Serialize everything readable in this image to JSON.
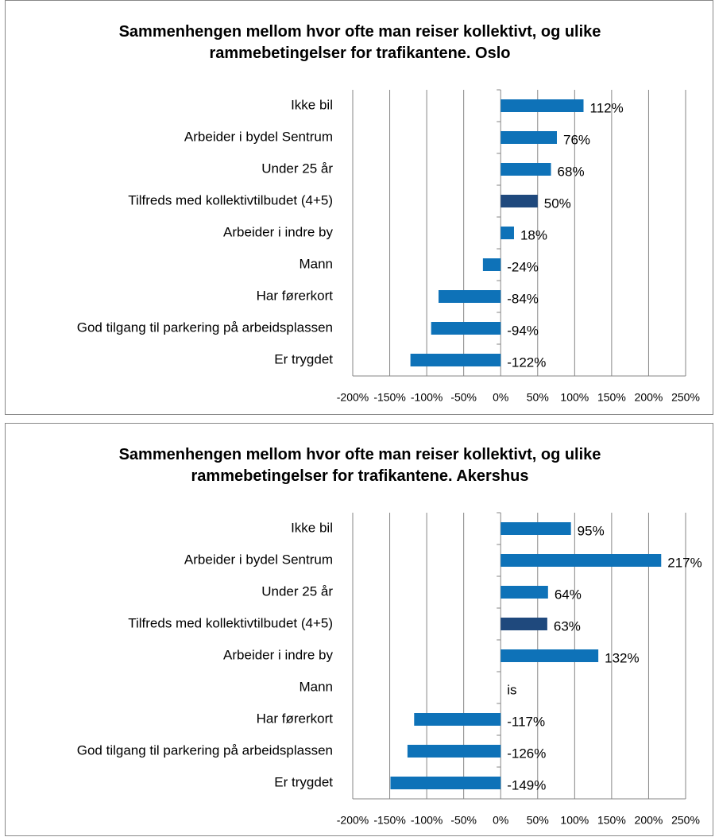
{
  "chart_data": [
    {
      "type": "bar",
      "orientation": "horizontal",
      "title": "Sammenhengen mellom hvor ofte man reiser kollektivt, og ulike rammebetingelser for trafikantene. Oslo",
      "categories": [
        "Ikke bil",
        "Arbeider i bydel Sentrum",
        "Under 25 år",
        "Tilfreds med kollektivtilbudet (4+5)",
        "Arbeider i indre by",
        "Mann",
        "Har førerkort",
        "God tilgang til parkering på arbeidsplassen",
        "Er trygdet"
      ],
      "values": [
        112,
        76,
        68,
        50,
        18,
        -24,
        -84,
        -94,
        -122
      ],
      "value_labels": [
        "112%",
        "76%",
        "68%",
        "50%",
        "18%",
        "-24%",
        "-84%",
        "-94%",
        "-122%"
      ],
      "colors": [
        "#0e72b8",
        "#0e72b8",
        "#0e72b8",
        "#1f497d",
        "#0e72b8",
        "#0e72b8",
        "#0e72b8",
        "#0e72b8",
        "#0e72b8"
      ],
      "xlim": [
        -200,
        250
      ],
      "xticks": [
        {
          "value": -200,
          "label": "-200%"
        },
        {
          "value": -150,
          "label": "-150%"
        },
        {
          "value": -100,
          "label": "-100%"
        },
        {
          "value": -50,
          "label": "-50%"
        },
        {
          "value": 0,
          "label": "0%"
        },
        {
          "value": 50,
          "label": "50%"
        },
        {
          "value": 100,
          "label": "100%"
        },
        {
          "value": 150,
          "label": "150%"
        },
        {
          "value": 200,
          "label": "200%"
        },
        {
          "value": 250,
          "label": "250%"
        }
      ],
      "grid": true
    },
    {
      "type": "bar",
      "orientation": "horizontal",
      "title": "Sammenhengen mellom hvor ofte man reiser kollektivt, og ulike rammebetingelser for trafikantene. Akershus",
      "categories": [
        "Ikke bil",
        "Arbeider i bydel Sentrum",
        "Under 25 år",
        "Tilfreds med kollektivtilbudet (4+5)",
        "Arbeider i indre by",
        "Mann",
        "Har førerkort",
        "God tilgang til parkering på arbeidsplassen",
        "Er trygdet"
      ],
      "values": [
        95,
        217,
        64,
        63,
        132,
        null,
        -117,
        -126,
        -149
      ],
      "value_labels": [
        "95%",
        "217%",
        "64%",
        "63%",
        "132%",
        "is",
        "-117%",
        "-126%",
        "-149%"
      ],
      "colors": [
        "#0e72b8",
        "#0e72b8",
        "#0e72b8",
        "#1f497d",
        "#0e72b8",
        "#0e72b8",
        "#0e72b8",
        "#0e72b8",
        "#0e72b8"
      ],
      "xlim": [
        -200,
        250
      ],
      "xticks": [
        {
          "value": -200,
          "label": "-200%"
        },
        {
          "value": -150,
          "label": "-150%"
        },
        {
          "value": -100,
          "label": "-100%"
        },
        {
          "value": -50,
          "label": "-50%"
        },
        {
          "value": 0,
          "label": "0%"
        },
        {
          "value": 50,
          "label": "50%"
        },
        {
          "value": 100,
          "label": "100%"
        },
        {
          "value": 150,
          "label": "150%"
        },
        {
          "value": 200,
          "label": "200%"
        },
        {
          "value": 250,
          "label": "250%"
        }
      ],
      "grid": true
    }
  ]
}
